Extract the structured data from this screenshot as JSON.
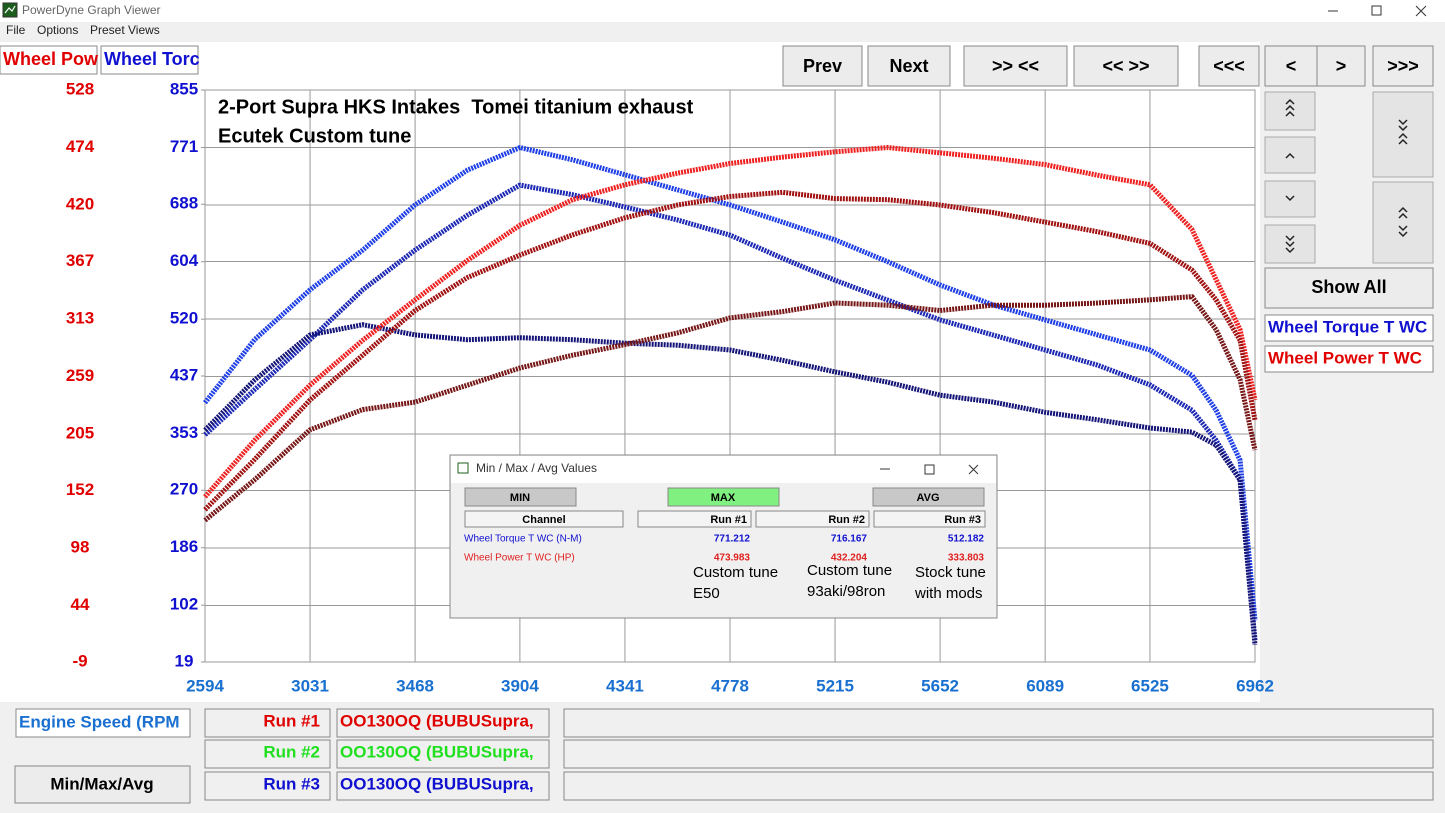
{
  "window": {
    "title": "PowerDyne Graph Viewer",
    "menu": [
      "File",
      "Options",
      "Preset Views"
    ]
  },
  "channel_tabs": [
    "Wheel Pow",
    "Wheel Torc"
  ],
  "nav_buttons": [
    "Prev",
    "Next",
    ">> <<",
    "<< >>",
    "<<<",
    "<",
    ">",
    ">>>"
  ],
  "side": {
    "show_all": "Show All",
    "channels": [
      "Wheel Torque T WC",
      "Wheel Power T WC"
    ]
  },
  "chart_data": {
    "type": "line",
    "annotations": [
      "2-Port Supra HKS Intakes  Tomei titanium exhaust",
      "Ecutek Custom tune"
    ],
    "x_label": "Engine Speed (RPM",
    "x": [
      2594,
      2800,
      3031,
      3250,
      3468,
      3686,
      3904,
      4123,
      4341,
      4560,
      4778,
      4997,
      5215,
      5434,
      5652,
      5871,
      6089,
      6307,
      6525,
      6700,
      6800,
      6900,
      6962
    ],
    "xlim": [
      2594,
      6962
    ],
    "xticks": [
      2594,
      3031,
      3468,
      3904,
      4341,
      4778,
      5215,
      5652,
      6089,
      6525,
      6962
    ],
    "ylim": [
      -9,
      528
    ],
    "yticks": [
      -9,
      44,
      98,
      152,
      205,
      259,
      313,
      367,
      420,
      474,
      528
    ],
    "y2lim": [
      19,
      855
    ],
    "y2ticks": [
      19,
      102,
      186,
      270,
      353,
      437,
      520,
      604,
      688,
      771,
      855
    ],
    "grid": true,
    "series": [
      {
        "color": "#1f3fe6",
        "axis": "y2",
        "values": [
          398,
          490,
          563,
          621,
          687,
          738,
          771,
          753,
          731,
          709,
          687,
          662,
          636,
          604,
          570,
          541,
          519,
          497,
          475,
          438,
          387,
          314,
          80
        ]
      },
      {
        "color": "#1c28b4",
        "axis": "y2",
        "values": [
          351,
          417,
          490,
          563,
          621,
          672,
          716,
          702,
          684,
          665,
          643,
          609,
          577,
          548,
          519,
          497,
          475,
          453,
          424,
          387,
          343,
          285,
          51
        ]
      },
      {
        "color": "#141478",
        "axis": "y2",
        "values": [
          358,
          431,
          497,
          512,
          497,
          490,
          493,
          490,
          485,
          482,
          475,
          460,
          443,
          428,
          409,
          399,
          384,
          373,
          361,
          355,
          336,
          285,
          44
        ]
      },
      {
        "color": "#ee2020",
        "values": [
          146,
          199,
          251,
          293,
          331,
          368,
          401,
          425,
          439,
          450,
          459,
          465,
          470,
          474,
          469,
          464,
          458,
          448,
          439,
          397,
          350,
          303,
          237
        ]
      },
      {
        "color": "#a01010",
        "values": [
          134,
          181,
          237,
          279,
          321,
          352,
          373,
          392,
          408,
          420,
          428,
          432,
          426,
          425,
          420,
          413,
          404,
          395,
          384,
          359,
          331,
          293,
          218
        ]
      },
      {
        "color": "#761616",
        "values": [
          124,
          162,
          209,
          228,
          235,
          251,
          267,
          279,
          289,
          300,
          314,
          320,
          328,
          326,
          321,
          326,
          326,
          328,
          331,
          334,
          303,
          256,
          190
        ]
      }
    ]
  },
  "dialog": {
    "title": "Min / Max / Avg Values",
    "buttons": [
      "MIN",
      "MAX",
      "AVG"
    ],
    "header": [
      "Channel",
      "Run #1",
      "Run #2",
      "Run #3"
    ],
    "rows": [
      [
        "Wheel Torque T WC (N-M)",
        771.212,
        716.167,
        512.182
      ],
      [
        "Wheel Power T WC (HP)",
        473.983,
        432.204,
        333.803
      ]
    ],
    "notes": [
      [
        "Custom tune",
        "E50"
      ],
      [
        "Custom tune",
        "93aki/98ron"
      ],
      [
        "Stock tune",
        "with mods"
      ]
    ]
  },
  "footer": {
    "button": "Min/Max/Avg",
    "runs": [
      {
        "label": "Run #1",
        "file": "OO130OQ (BUBUSupra,"
      },
      {
        "label": "Run #2",
        "file": "OO130OQ (BUBUSupra,"
      },
      {
        "label": "Run #3",
        "file": "OO130OQ (BUBUSupra,"
      }
    ]
  }
}
